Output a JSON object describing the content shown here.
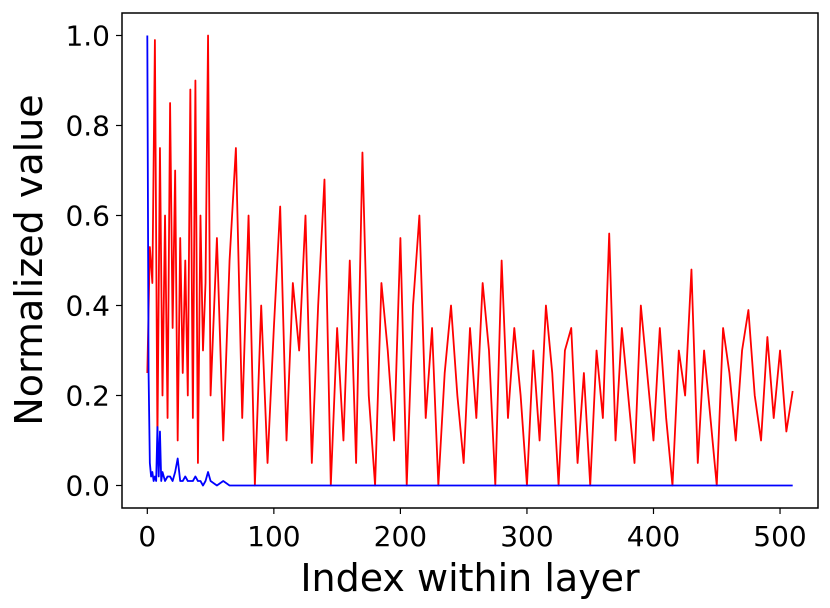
{
  "chart_data": {
    "type": "line",
    "title": "",
    "xlabel": "Index within layer",
    "ylabel": "Normalized value",
    "xlim": [
      -20,
      530
    ],
    "ylim": [
      -0.05,
      1.05
    ],
    "xticks": [
      0,
      100,
      200,
      300,
      400,
      500
    ],
    "yticks": [
      0.0,
      0.2,
      0.4,
      0.6,
      0.8,
      1.0
    ],
    "xtick_labels": [
      "0",
      "100",
      "200",
      "300",
      "400",
      "500"
    ],
    "ytick_labels": [
      "0.0",
      "0.2",
      "0.4",
      "0.6",
      "0.8",
      "1.0"
    ],
    "grid": false,
    "legend": "none",
    "series": [
      {
        "color": "#ff0000",
        "x": [
          0,
          2,
          4,
          6,
          8,
          10,
          12,
          14,
          16,
          18,
          20,
          22,
          24,
          26,
          28,
          30,
          32,
          34,
          36,
          38,
          40,
          42,
          44,
          46,
          48,
          50,
          55,
          60,
          65,
          70,
          75,
          80,
          85,
          90,
          95,
          100,
          105,
          110,
          115,
          120,
          125,
          130,
          135,
          140,
          145,
          150,
          155,
          160,
          165,
          170,
          175,
          180,
          185,
          190,
          195,
          200,
          205,
          210,
          215,
          220,
          225,
          230,
          235,
          240,
          245,
          250,
          255,
          260,
          265,
          270,
          275,
          280,
          285,
          290,
          295,
          300,
          305,
          310,
          315,
          320,
          325,
          330,
          335,
          340,
          345,
          350,
          355,
          360,
          365,
          370,
          375,
          380,
          385,
          390,
          395,
          400,
          405,
          410,
          415,
          420,
          425,
          430,
          435,
          440,
          445,
          450,
          455,
          460,
          465,
          470,
          475,
          480,
          485,
          490,
          495,
          500,
          505,
          510
        ],
        "y": [
          0.25,
          0.53,
          0.45,
          0.99,
          0.1,
          0.75,
          0.2,
          0.6,
          0.15,
          0.85,
          0.35,
          0.7,
          0.1,
          0.55,
          0.25,
          0.5,
          0.2,
          0.88,
          0.15,
          0.9,
          0.05,
          0.6,
          0.3,
          0.45,
          1.0,
          0.2,
          0.55,
          0.1,
          0.5,
          0.75,
          0.15,
          0.6,
          0.0,
          0.4,
          0.05,
          0.35,
          0.62,
          0.1,
          0.45,
          0.3,
          0.6,
          0.05,
          0.4,
          0.68,
          0.0,
          0.35,
          0.1,
          0.5,
          0.05,
          0.74,
          0.2,
          0.0,
          0.45,
          0.3,
          0.1,
          0.55,
          0.0,
          0.4,
          0.6,
          0.15,
          0.35,
          0.0,
          0.25,
          0.4,
          0.2,
          0.05,
          0.35,
          0.15,
          0.45,
          0.3,
          0.0,
          0.5,
          0.15,
          0.35,
          0.2,
          0.0,
          0.3,
          0.1,
          0.4,
          0.25,
          0.0,
          0.3,
          0.35,
          0.05,
          0.25,
          0.0,
          0.3,
          0.15,
          0.56,
          0.1,
          0.35,
          0.2,
          0.05,
          0.4,
          0.25,
          0.1,
          0.35,
          0.15,
          0.0,
          0.3,
          0.2,
          0.48,
          0.05,
          0.3,
          0.15,
          0.0,
          0.35,
          0.25,
          0.1,
          0.3,
          0.39,
          0.2,
          0.1,
          0.33,
          0.15,
          0.3,
          0.12,
          0.21
        ]
      },
      {
        "color": "#0000ff",
        "x": [
          0,
          1,
          2,
          3,
          4,
          5,
          6,
          7,
          8,
          9,
          10,
          11,
          12,
          14,
          16,
          18,
          20,
          22,
          24,
          26,
          28,
          30,
          32,
          34,
          36,
          38,
          40,
          42,
          44,
          46,
          48,
          50,
          55,
          60,
          65,
          70,
          75,
          80,
          90,
          100,
          120,
          140,
          160,
          180,
          200,
          250,
          300,
          350,
          400,
          450,
          510
        ],
        "y": [
          1.0,
          0.25,
          0.05,
          0.02,
          0.03,
          0.01,
          0.02,
          0.01,
          0.13,
          0.02,
          0.12,
          0.01,
          0.03,
          0.01,
          0.02,
          0.02,
          0.01,
          0.03,
          0.06,
          0.01,
          0.01,
          0.02,
          0.01,
          0.01,
          0.01,
          0.02,
          0.01,
          0.01,
          0.0,
          0.01,
          0.03,
          0.01,
          0.0,
          0.01,
          0.0,
          0.0,
          0.0,
          0.0,
          0.0,
          0.0,
          0.0,
          0.0,
          0.0,
          0.0,
          0.0,
          0.0,
          0.0,
          0.0,
          0.0,
          0.0,
          0.0
        ]
      }
    ]
  }
}
